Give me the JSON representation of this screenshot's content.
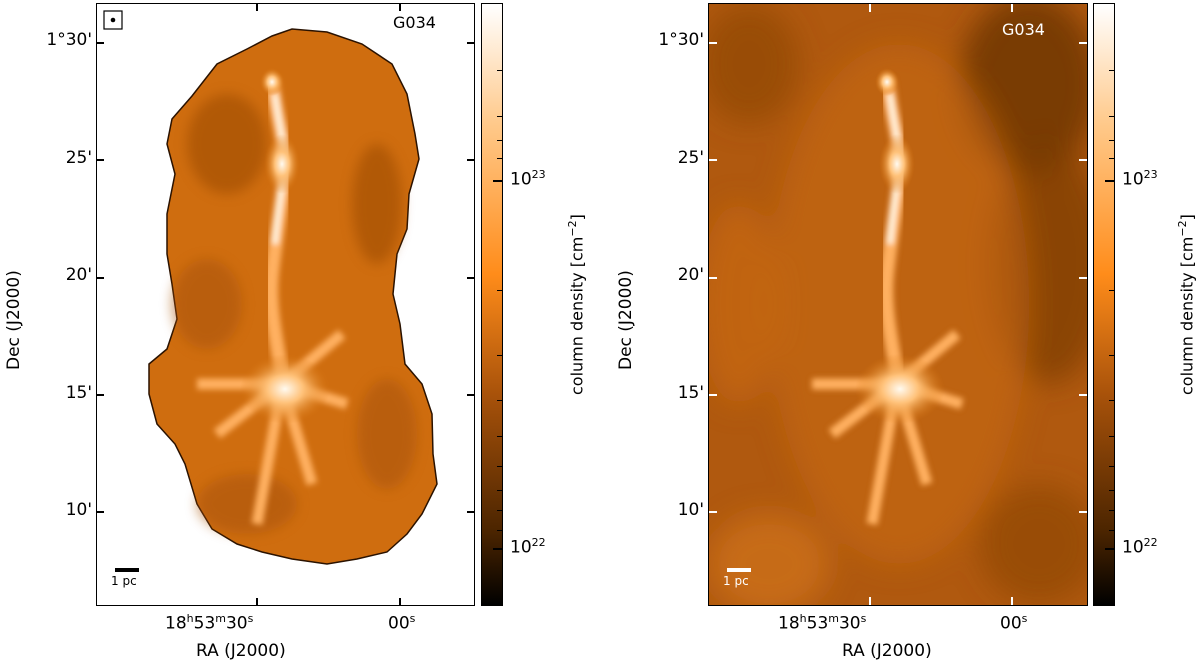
{
  "panels": [
    {
      "field_label": "G034",
      "dec_ticks": [
        "1°30'",
        "25'",
        "20'",
        "15'",
        "10'"
      ],
      "ra_tick_main": {
        "h": "18",
        "m": "53",
        "s": "30"
      },
      "ra_tick_right": "00",
      "ra_axis_label": "RA (J2000)",
      "dec_axis_label": "Dec (J2000)",
      "scalebar_label": "1 pc",
      "colorbar": {
        "label": "column density [cm",
        "label_exp": "−2",
        "tick_high_base": "10",
        "tick_high_exp": "23",
        "tick_low_base": "10",
        "tick_low_exp": "22"
      }
    },
    {
      "field_label": "G034",
      "dec_ticks": [
        "1°30'",
        "25'",
        "20'",
        "15'",
        "10'"
      ],
      "ra_tick_main": {
        "h": "18",
        "m": "53",
        "s": "30"
      },
      "ra_tick_right": "00",
      "ra_axis_label": "RA (J2000)",
      "dec_axis_label": "Dec (J2000)",
      "scalebar_label": "1 pc",
      "colorbar": {
        "label": "column density [cm",
        "label_exp": "−2",
        "tick_high_base": "10",
        "tick_high_exp": "23",
        "tick_low_base": "10",
        "tick_low_exp": "22"
      }
    }
  ],
  "colors": {
    "map_mid": "#d8750f",
    "map_dark": "#3a1a02",
    "map_bright": "#fff2dc",
    "colorbar_stops": [
      "#000000",
      "#5a2c00",
      "#c0600a",
      "#ff8c1a",
      "#ffc98a",
      "#ffffff"
    ]
  }
}
